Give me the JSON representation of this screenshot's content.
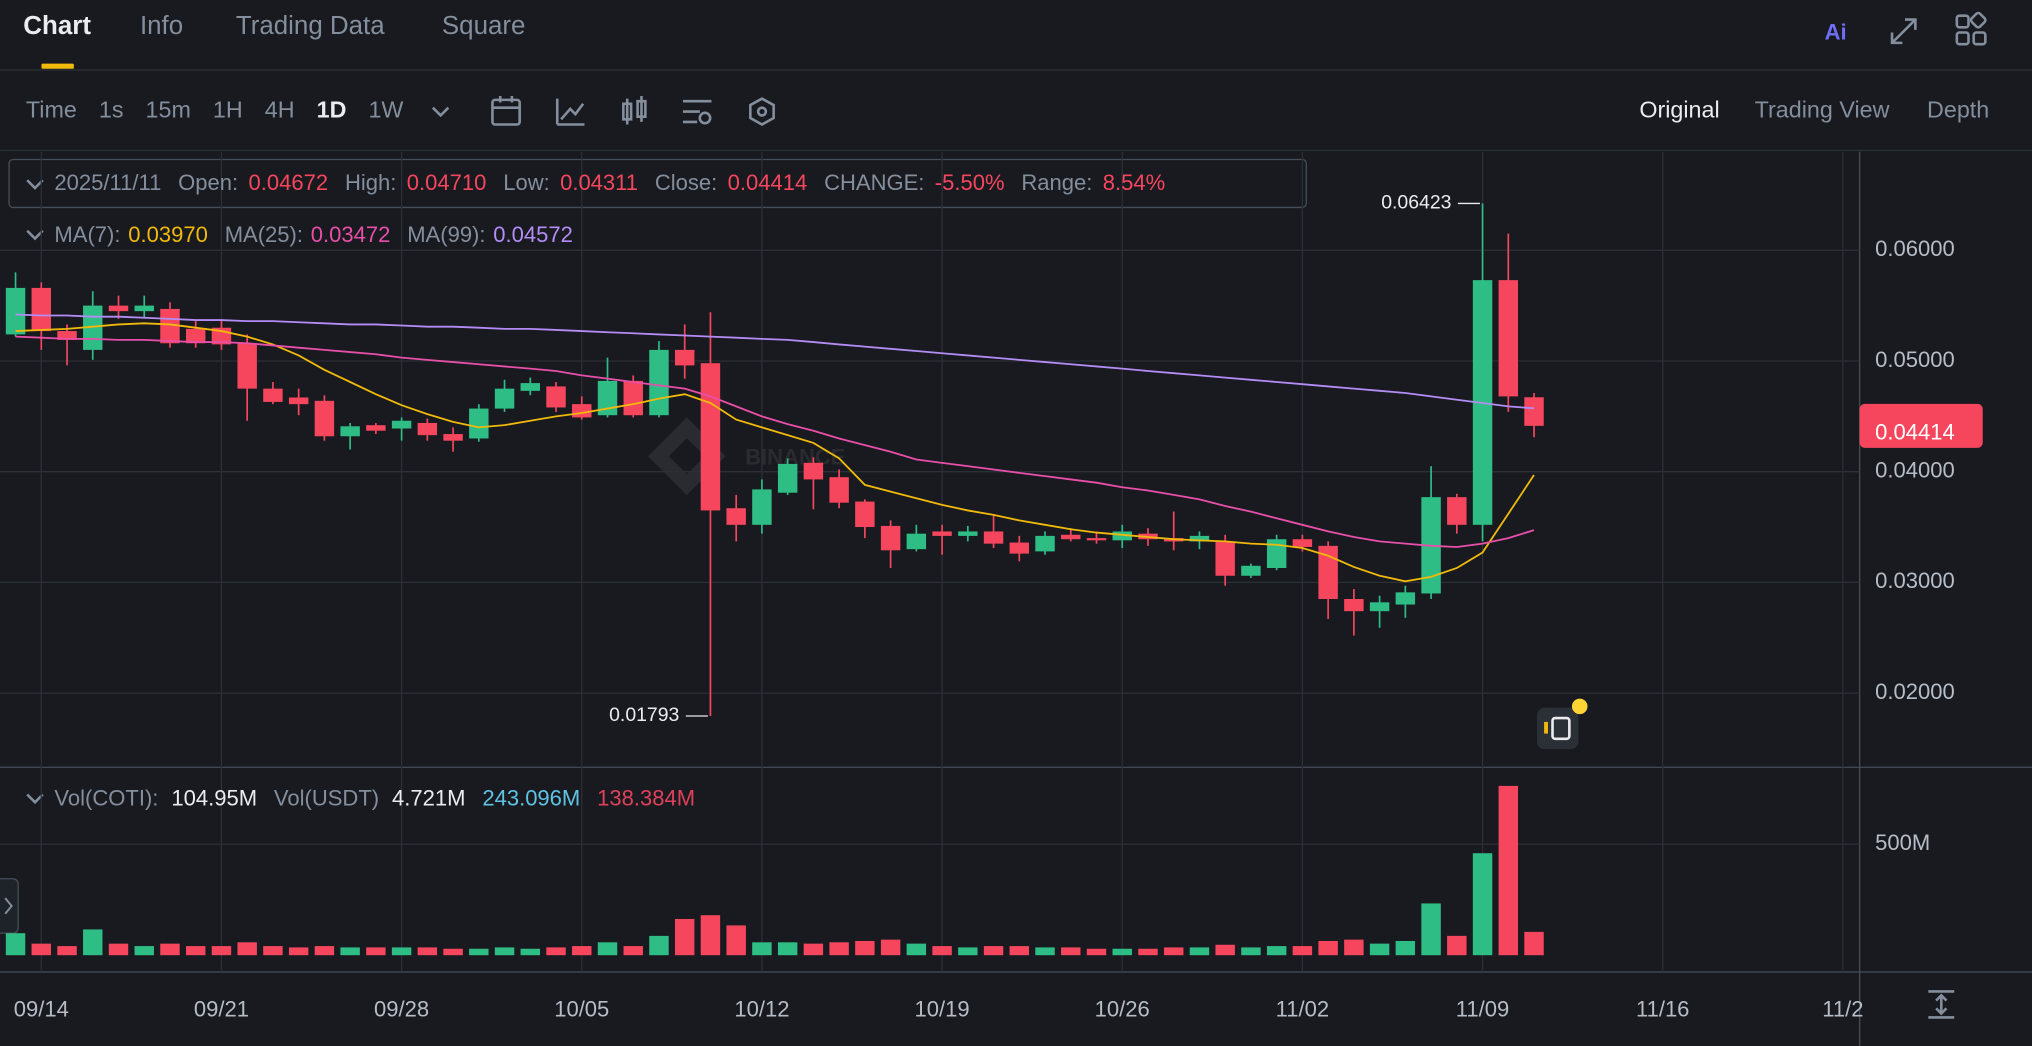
{
  "ui": {
    "tabs": [
      "Chart",
      "Info",
      "Trading Data",
      "Square"
    ],
    "ai": "Ai",
    "intervals": [
      "Time",
      "1s",
      "15m",
      "1H",
      "4H",
      "1D",
      "1W"
    ],
    "views": [
      "Original",
      "Trading View",
      "Depth"
    ],
    "legend": {
      "date": "2025/11/11",
      "items": [
        {
          "label": "Open:",
          "value": "0.04672"
        },
        {
          "label": "High:",
          "value": "0.04710"
        },
        {
          "label": "Low:",
          "value": "0.04311"
        },
        {
          "label": "Close:",
          "value": "0.04414"
        },
        {
          "label": "CHANGE:",
          "value": "-5.50%"
        },
        {
          "label": "Range:",
          "value": "8.54%"
        }
      ]
    },
    "vol_legend": [
      {
        "label": "Vol(COTI):",
        "value": "104.95M",
        "color": "#eaecef"
      },
      {
        "label": "Vol(USDT)",
        "value": "4.721M",
        "color": "#eaecef"
      },
      {
        "value": "243.096M",
        "color": "#5fc3e4"
      },
      {
        "value": "138.384M",
        "color": "#e0415a"
      }
    ],
    "watermark": "BINANCE"
  },
  "chart_data": {
    "type": "candlestick",
    "categories": [
      null,
      "09/14",
      null,
      null,
      null,
      null,
      null,
      null,
      "09/21",
      null,
      null,
      null,
      null,
      null,
      null,
      "09/28",
      null,
      null,
      null,
      null,
      null,
      null,
      "10/05",
      null,
      null,
      null,
      null,
      null,
      null,
      "10/12",
      null,
      null,
      null,
      null,
      null,
      null,
      "10/19",
      null,
      null,
      null,
      null,
      null,
      null,
      "10/26",
      null,
      null,
      null,
      null,
      null,
      null,
      "11/02",
      null,
      null,
      null,
      null,
      null,
      null,
      "11/09",
      null,
      null
    ],
    "xticks_beyond": [
      "11/16",
      "11/2"
    ],
    "open": [
      0.0524,
      0.0566,
      0.0527,
      0.051,
      0.055,
      0.0545,
      0.0547,
      0.0529,
      0.053,
      0.0516,
      0.0475,
      0.0467,
      0.0464,
      0.0432,
      0.0442,
      0.0439,
      0.0444,
      0.0434,
      0.043,
      0.0457,
      0.0473,
      0.0477,
      0.0461,
      0.0451,
      0.0482,
      0.0451,
      0.051,
      0.0498,
      0.0367,
      0.0352,
      0.0381,
      0.0408,
      0.0395,
      0.0373,
      0.0351,
      0.033,
      0.0346,
      0.0342,
      0.0346,
      0.0336,
      0.0328,
      0.0343,
      0.034,
      0.0338,
      0.0344,
      0.034,
      0.0337,
      0.0337,
      0.0306,
      0.0313,
      0.0339,
      0.0333,
      0.0285,
      0.0274,
      0.028,
      0.029,
      0.0377,
      0.0352,
      0.0573,
      0.04672
    ],
    "high": [
      0.058,
      0.0571,
      0.0533,
      0.0563,
      0.0559,
      0.0559,
      0.0553,
      0.0536,
      0.0537,
      0.0524,
      0.0481,
      0.0475,
      0.0469,
      0.0444,
      0.0444,
      0.0449,
      0.0448,
      0.044,
      0.0461,
      0.0483,
      0.0485,
      0.0481,
      0.0468,
      0.0503,
      0.0487,
      0.0518,
      0.0533,
      0.0544,
      0.0379,
      0.0393,
      0.0412,
      0.0413,
      0.0402,
      0.0375,
      0.0356,
      0.0352,
      0.0352,
      0.0351,
      0.0361,
      0.0342,
      0.0346,
      0.0349,
      0.0346,
      0.0352,
      0.0349,
      0.0364,
      0.0346,
      0.0343,
      0.0317,
      0.0343,
      0.0343,
      0.0337,
      0.0294,
      0.0288,
      0.0297,
      0.0405,
      0.038,
      0.06423,
      0.0615,
      0.0471
    ],
    "low": [
      0.0522,
      0.051,
      0.0496,
      0.0501,
      0.0538,
      0.0539,
      0.0512,
      0.0512,
      0.051,
      0.0446,
      0.0461,
      0.0451,
      0.0428,
      0.042,
      0.0434,
      0.0428,
      0.0428,
      0.0418,
      0.0427,
      0.0454,
      0.0469,
      0.0454,
      0.0447,
      0.0449,
      0.0449,
      0.0449,
      0.0484,
      0.01793,
      0.0337,
      0.0344,
      0.0379,
      0.0366,
      0.0367,
      0.034,
      0.0313,
      0.0328,
      0.0325,
      0.0337,
      0.0331,
      0.0319,
      0.0325,
      0.0337,
      0.0335,
      0.0331,
      0.0333,
      0.0329,
      0.033,
      0.0297,
      0.0304,
      0.0311,
      0.0328,
      0.0267,
      0.0252,
      0.0259,
      0.0268,
      0.0285,
      0.0344,
      0.0337,
      0.0454,
      0.04311
    ],
    "close": [
      0.0566,
      0.0527,
      0.0519,
      0.055,
      0.0545,
      0.055,
      0.0516,
      0.0516,
      0.0515,
      0.0475,
      0.0463,
      0.0461,
      0.0432,
      0.0441,
      0.0437,
      0.0446,
      0.0433,
      0.0428,
      0.0457,
      0.0475,
      0.048,
      0.0458,
      0.0449,
      0.0482,
      0.0451,
      0.051,
      0.0496,
      0.0365,
      0.0352,
      0.0384,
      0.0407,
      0.0393,
      0.0372,
      0.035,
      0.0329,
      0.0344,
      0.0342,
      0.0346,
      0.0335,
      0.0326,
      0.0342,
      0.0339,
      0.0338,
      0.0346,
      0.0339,
      0.0337,
      0.0342,
      0.0306,
      0.0315,
      0.0339,
      0.0332,
      0.0285,
      0.0274,
      0.0282,
      0.0291,
      0.0377,
      0.0352,
      0.0573,
      0.0468,
      0.04414
    ],
    "up_color": "#2ebd85",
    "down_color": "#f6465d",
    "series": [
      {
        "name": "MA(7):",
        "last_label": "0.03970",
        "color": "#f0b90b",
        "values": [
          0.0527,
          0.0528,
          0.0529,
          0.0531,
          0.0533,
          0.0534,
          0.0533,
          0.053,
          0.0527,
          0.0522,
          0.0515,
          0.0505,
          0.0492,
          0.0481,
          0.047,
          0.046,
          0.0452,
          0.0445,
          0.044,
          0.0442,
          0.0446,
          0.045,
          0.0453,
          0.0457,
          0.0461,
          0.0466,
          0.047,
          0.0462,
          0.0447,
          0.044,
          0.0433,
          0.0426,
          0.0412,
          0.0388,
          0.0382,
          0.0376,
          0.037,
          0.0365,
          0.0361,
          0.0356,
          0.0352,
          0.0348,
          0.0345,
          0.0343,
          0.0341,
          0.0339,
          0.0338,
          0.0337,
          0.0335,
          0.0334,
          0.0331,
          0.0324,
          0.0314,
          0.0306,
          0.0301,
          0.0305,
          0.0313,
          0.0327,
          0.0362,
          0.0397
        ]
      },
      {
        "name": "MA(25):",
        "last_label": "0.03472",
        "color": "#e84fa9",
        "values": [
          0.0522,
          0.0521,
          0.052,
          0.052,
          0.0519,
          0.0519,
          0.0518,
          0.0517,
          0.0517,
          0.0516,
          0.0514,
          0.0512,
          0.051,
          0.0508,
          0.0506,
          0.0503,
          0.0501,
          0.0499,
          0.0497,
          0.0495,
          0.0493,
          0.0491,
          0.0487,
          0.0484,
          0.0481,
          0.0478,
          0.0475,
          0.0468,
          0.0459,
          0.045,
          0.0443,
          0.0437,
          0.043,
          0.0424,
          0.0418,
          0.0411,
          0.0408,
          0.0405,
          0.0402,
          0.0399,
          0.0396,
          0.0393,
          0.039,
          0.0386,
          0.0383,
          0.0379,
          0.0375,
          0.0369,
          0.0364,
          0.0358,
          0.0352,
          0.0346,
          0.0341,
          0.0337,
          0.0335,
          0.0333,
          0.0332,
          0.0335,
          0.034,
          0.03472
        ]
      },
      {
        "name": "MA(99):",
        "last_label": "0.04572",
        "color": "#b48cf5",
        "values": [
          0.0542,
          0.0541,
          0.0541,
          0.054,
          0.054,
          0.0539,
          0.0538,
          0.0537,
          0.0537,
          0.0536,
          0.0536,
          0.0535,
          0.0534,
          0.0533,
          0.0533,
          0.0532,
          0.0531,
          0.0531,
          0.053,
          0.0529,
          0.0529,
          0.0528,
          0.0527,
          0.0526,
          0.0525,
          0.0524,
          0.0523,
          0.0522,
          0.0521,
          0.052,
          0.0519,
          0.0517,
          0.0515,
          0.0513,
          0.0511,
          0.0509,
          0.0507,
          0.0505,
          0.0503,
          0.0501,
          0.0499,
          0.0497,
          0.0495,
          0.0493,
          0.0491,
          0.0489,
          0.0487,
          0.0485,
          0.0483,
          0.0481,
          0.0479,
          0.0477,
          0.0475,
          0.0473,
          0.0471,
          0.0468,
          0.0465,
          0.0462,
          0.0459,
          0.04572
        ]
      }
    ],
    "ylim": [
      0.0133,
      0.0689
    ],
    "yticks": [
      {
        "value": 0.02,
        "label": "0.02000"
      },
      {
        "value": 0.03,
        "label": "0.03000"
      },
      {
        "value": 0.04,
        "label": "0.04000"
      },
      {
        "value": 0.05,
        "label": "0.05000"
      },
      {
        "value": 0.06,
        "label": "0.06000"
      }
    ],
    "grid": true,
    "volume": {
      "values": [
        99,
        52,
        41,
        116,
        52,
        41,
        52,
        41,
        41,
        58,
        41,
        35,
        41,
        35,
        35,
        35,
        35,
        29,
        29,
        35,
        29,
        35,
        41,
        58,
        41,
        87,
        163,
        180,
        134,
        58,
        58,
        52,
        58,
        64,
        70,
        52,
        41,
        35,
        41,
        41,
        35,
        35,
        29,
        29,
        29,
        35,
        35,
        47,
        35,
        41,
        41,
        64,
        70,
        52,
        64,
        233,
        87,
        459,
        762,
        104.95
      ],
      "ylim": [
        0,
        840
      ],
      "yticks": [
        {
          "value": 500,
          "label": "500M"
        }
      ]
    }
  }
}
